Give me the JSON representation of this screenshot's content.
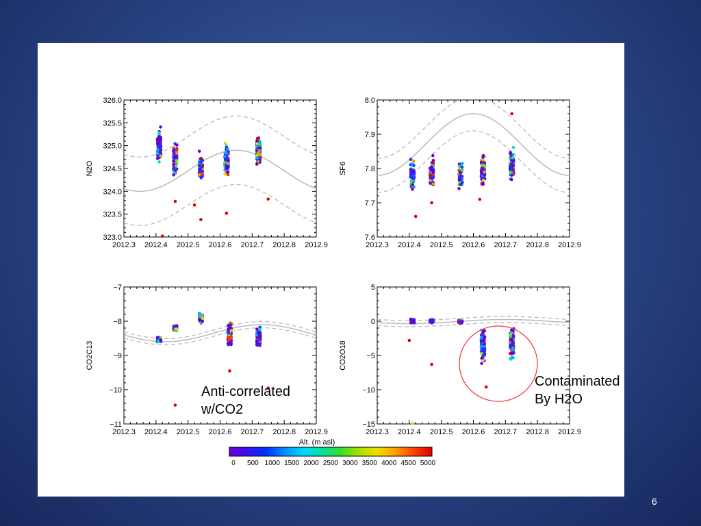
{
  "slide": {
    "number": "6",
    "annotation_left": "Anti-correlated\nw/CO2",
    "annotation_right": "Contaminated\nBy H2O"
  },
  "colorbar": {
    "title": "Alt. (m asl)",
    "ticks": [
      "0",
      "500",
      "1000",
      "1500",
      "2000",
      "2500",
      "3000",
      "3500",
      "4000",
      "4500",
      "5000"
    ],
    "colors": [
      "#6a00d8",
      "#2030ff",
      "#00a8ff",
      "#00e0d0",
      "#20e060",
      "#80e020",
      "#e0e000",
      "#ff9000",
      "#ff3000",
      "#e00000"
    ]
  },
  "chart_data": [
    {
      "type": "scatter",
      "ylabel": "N2O",
      "xlim": [
        2012.3,
        2012.9
      ],
      "ylim": [
        323.0,
        326.0
      ],
      "xticks": [
        "2012.3",
        "2012.4",
        "2012.5",
        "2012.6",
        "2012.7",
        "2012.8",
        "2012.9"
      ],
      "yticks": [
        "323.0",
        "323.5",
        "324.0",
        "324.5",
        "325.0",
        "325.5",
        "326.0"
      ],
      "curve": {
        "mean": 324.45,
        "amp": 0.45,
        "phase": 2012.35,
        "band": 0.75
      },
      "clusters": [
        {
          "x": 2012.41,
          "center": 325.0,
          "spread": 0.45,
          "n": 70
        },
        {
          "x": 2012.46,
          "center": 324.7,
          "spread": 0.45,
          "n": 55
        },
        {
          "x": 2012.54,
          "center": 324.5,
          "spread": 0.4,
          "n": 50
        },
        {
          "x": 2012.62,
          "center": 324.7,
          "spread": 0.45,
          "n": 75
        },
        {
          "x": 2012.72,
          "center": 324.9,
          "spread": 0.4,
          "n": 100
        }
      ],
      "outliers": [
        [
          2012.42,
          323.02
        ],
        [
          2012.46,
          323.78
        ],
        [
          2012.54,
          323.38
        ],
        [
          2012.62,
          323.52
        ],
        [
          2012.75,
          323.83
        ],
        [
          2012.52,
          323.7
        ]
      ]
    },
    {
      "type": "scatter",
      "ylabel": "SF6",
      "xlim": [
        2012.3,
        2012.9
      ],
      "ylim": [
        7.6,
        8.0
      ],
      "xticks": [
        "2012.3",
        "2012.4",
        "2012.5",
        "2012.6",
        "2012.7",
        "2012.8",
        "2012.9"
      ],
      "yticks": [
        "7.6",
        "7.7",
        "7.8",
        "7.9",
        "8.0"
      ],
      "curve": {
        "mean": 7.87,
        "amp": 0.09,
        "phase": 2012.3,
        "band": 0.05
      },
      "clusters": [
        {
          "x": 2012.41,
          "center": 7.78,
          "spread": 0.06,
          "n": 55
        },
        {
          "x": 2012.47,
          "center": 7.79,
          "spread": 0.06,
          "n": 60
        },
        {
          "x": 2012.56,
          "center": 7.78,
          "spread": 0.05,
          "n": 45
        },
        {
          "x": 2012.63,
          "center": 7.79,
          "spread": 0.06,
          "n": 70
        },
        {
          "x": 2012.72,
          "center": 7.81,
          "spread": 0.06,
          "n": 95
        }
      ],
      "outliers": [
        [
          2012.42,
          7.66
        ],
        [
          2012.47,
          7.7
        ],
        [
          2012.72,
          7.96
        ],
        [
          2012.62,
          7.71
        ]
      ]
    },
    {
      "type": "scatter",
      "ylabel": "CO2C13",
      "xlim": [
        2012.3,
        2012.9
      ],
      "ylim": [
        -11,
        -7
      ],
      "xticks": [
        "2012.3",
        "2012.4",
        "2012.5",
        "2012.6",
        "2012.7",
        "2012.8",
        "2012.9"
      ],
      "yticks": [
        "−11",
        "−10",
        "−9",
        "−8",
        "−7"
      ],
      "curve": {
        "mean": -8.35,
        "amp": 0.25,
        "phase": 2012.43,
        "band": 0.09
      },
      "clusters": [
        {
          "x": 2012.41,
          "center": -8.55,
          "spread": 0.15,
          "n": 30
        },
        {
          "x": 2012.46,
          "center": -8.2,
          "spread": 0.12,
          "n": 25
        },
        {
          "x": 2012.54,
          "center": -7.9,
          "spread": 0.2,
          "n": 40
        },
        {
          "x": 2012.63,
          "center": -8.4,
          "spread": 0.5,
          "n": 80
        },
        {
          "x": 2012.72,
          "center": -8.5,
          "spread": 0.35,
          "n": 80
        }
      ],
      "outliers": [
        [
          2012.46,
          -10.45
        ],
        [
          2012.63,
          -9.45
        ],
        [
          2012.75,
          -9.95
        ]
      ]
    },
    {
      "type": "scatter",
      "ylabel": "CO2O18",
      "xlim": [
        2012.3,
        2012.9
      ],
      "ylim": [
        -15,
        5
      ],
      "xticks": [
        "2012.3",
        "2012.4",
        "2012.5",
        "2012.6",
        "2012.7",
        "2012.8",
        "2012.9"
      ],
      "yticks": [
        "−15",
        "−10",
        "−5",
        "0",
        "5"
      ],
      "curve": {
        "mean": -0.05,
        "amp": 0.3,
        "phase": 2012.4,
        "band": 0.45
      },
      "clusters": [
        {
          "x": 2012.41,
          "center": 0.0,
          "spread": 0.4,
          "n": 35
        },
        {
          "x": 2012.47,
          "center": 0.0,
          "spread": 0.35,
          "n": 35
        },
        {
          "x": 2012.56,
          "center": -0.1,
          "spread": 0.3,
          "n": 30
        },
        {
          "x": 2012.63,
          "center": -3.5,
          "spread": 3.2,
          "n": 110
        },
        {
          "x": 2012.72,
          "center": -3.0,
          "spread": 3.0,
          "n": 100
        }
      ],
      "outliers": [
        [
          2012.47,
          -6.3
        ],
        [
          2012.41,
          -14.9
        ],
        [
          2012.4,
          -2.8
        ],
        [
          2012.64,
          -9.6
        ]
      ]
    }
  ]
}
